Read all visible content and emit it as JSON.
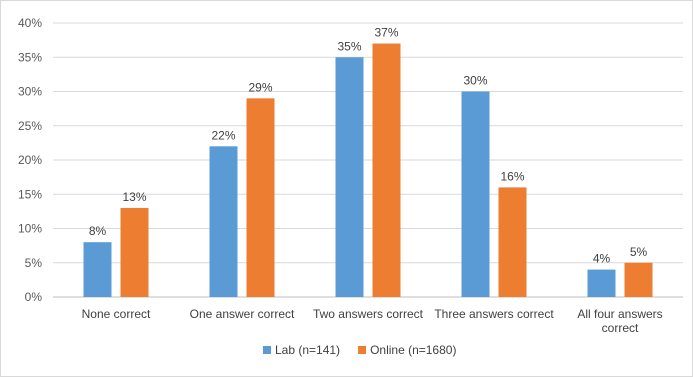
{
  "chart_data": {
    "type": "bar",
    "categories": [
      [
        "None correct"
      ],
      [
        "One answer correct"
      ],
      [
        "Two answers correct"
      ],
      [
        "Three answers correct"
      ],
      [
        "All four answers",
        "correct"
      ]
    ],
    "series": [
      {
        "name": "Lab (n=141)",
        "color": "#5b9bd5",
        "values": [
          8,
          22,
          35,
          30,
          4
        ]
      },
      {
        "name": "Online (n=1680)",
        "color": "#ed7d31",
        "values": [
          13,
          29,
          37,
          16,
          5
        ]
      }
    ],
    "y_ticks": [
      "0%",
      "5%",
      "10%",
      "15%",
      "20%",
      "25%",
      "30%",
      "35%",
      "40%"
    ],
    "ylim": [
      0,
      40
    ],
    "unit": "%",
    "grid": true,
    "legend_position": "bottom"
  }
}
